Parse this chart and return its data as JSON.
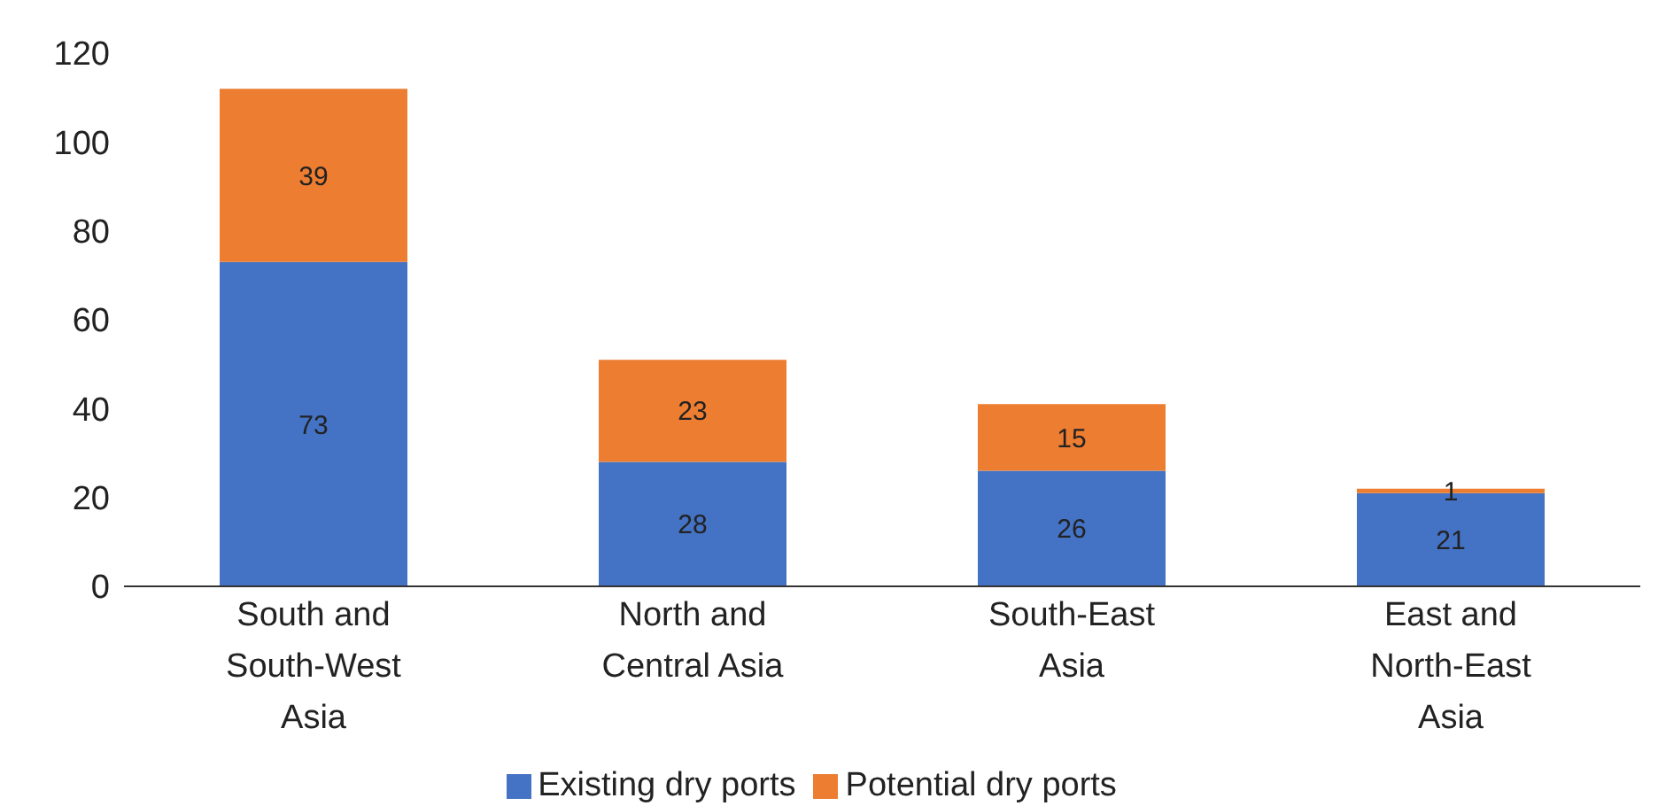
{
  "chart_data": {
    "type": "bar",
    "stacked": true,
    "categories": [
      "South and South-West Asia",
      "North and Central Asia",
      "South-East Asia",
      "East and North-East Asia"
    ],
    "series": [
      {
        "name": "Existing dry ports",
        "color": "#4472c4",
        "values": [
          73,
          28,
          26,
          21
        ]
      },
      {
        "name": "Potential dry ports",
        "color": "#ed7d31",
        "values": [
          39,
          23,
          15,
          1
        ]
      }
    ],
    "ylim": [
      0,
      120
    ],
    "yticks": [
      0,
      20,
      40,
      60,
      80,
      100,
      120
    ],
    "data_labels": true,
    "legend": "bottom"
  }
}
